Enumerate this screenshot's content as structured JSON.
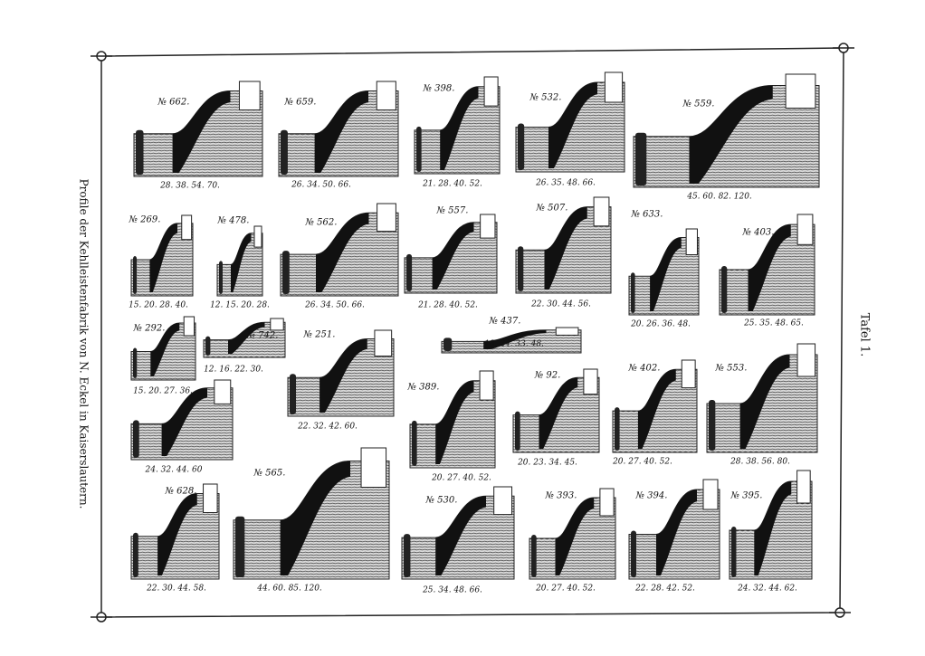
{
  "side_title": "Profile der Kehlleistenfabrik von N. Eckel in Kaiserslautern.",
  "plate": "Tafel 1.",
  "profiles": [
    {
      "label": "№ 662.",
      "sizes": "28. 38. 54. 70."
    },
    {
      "label": "№ 659.",
      "sizes": "26. 34. 50. 66."
    },
    {
      "label": "№ 398.",
      "sizes": "21. 28. 40. 52."
    },
    {
      "label": "№ 532.",
      "sizes": "26. 35. 48. 66."
    },
    {
      "label": "№ 559.",
      "sizes": "45. 60. 82. 120."
    },
    {
      "label": "№ 269.",
      "sizes": "15. 20. 28. 40."
    },
    {
      "label": "№ 478.",
      "sizes": "12. 15. 20. 28."
    },
    {
      "label": "№ 562.",
      "sizes": "26. 34. 50. 66."
    },
    {
      "label": "№ 557.",
      "sizes": "21. 28. 40. 52."
    },
    {
      "label": "№ 507.",
      "sizes": "22. 30. 44. 56."
    },
    {
      "label": "№ 633.",
      "sizes": "20. 26. 36. 48."
    },
    {
      "label": "№ 403.",
      "sizes": "25. 35. 48. 65."
    },
    {
      "label": "№ 292.",
      "sizes": "15. 20. 27. 36."
    },
    {
      "label": "№ 742.",
      "sizes": "12. 16. 22. 30."
    },
    {
      "label": "№ 251.",
      "sizes": "22. 32. 42. 60."
    },
    {
      "label": "№ 437.",
      "sizes": "18. 24. 33. 48."
    },
    {
      "label": "№ 389.",
      "sizes": "20. 27. 40. 52."
    },
    {
      "label": "№ 92.",
      "sizes": "20. 23. 34. 45."
    },
    {
      "label": "№ 402.",
      "sizes": "20. 27. 40. 52."
    },
    {
      "label": "№ 553.",
      "sizes": "28. 38. 56. 80."
    },
    {
      "sizes": "24. 32. 44. 60"
    },
    {
      "label": "№ 628.",
      "sizes": "22. 30. 44. 58."
    },
    {
      "label": "№ 565.",
      "sizes": "44. 60. 85. 120."
    },
    {
      "label": "№ 530.",
      "sizes": "25. 34. 48. 66."
    },
    {
      "label": "№ 393.",
      "sizes": "20. 27. 40. 52."
    },
    {
      "label": "№ 394.",
      "sizes": "22. 28. 42. 52."
    },
    {
      "label": "№ 395.",
      "sizes": "24. 32. 44. 62."
    }
  ]
}
